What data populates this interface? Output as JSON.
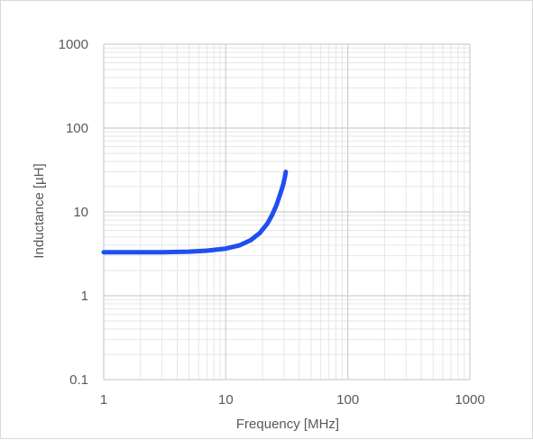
{
  "chart_data": {
    "type": "line",
    "xlabel": "Frequency [MHz]",
    "ylabel": "Inductance  [µH]",
    "xscale": "log",
    "yscale": "log",
    "xlim": [
      1,
      1000
    ],
    "ylim": [
      0.1,
      1000
    ],
    "grid": true,
    "x_tick_labels": [
      "1",
      "10",
      "100",
      "1000"
    ],
    "y_tick_labels": [
      "1000",
      "100",
      "10",
      "1",
      "0.1"
    ],
    "series_color": "#1f4ff0",
    "series": [
      {
        "x": [
          1,
          2,
          3,
          5,
          7,
          10,
          13,
          16,
          19,
          22,
          24,
          26,
          28,
          29.5,
          30.5,
          31
        ],
        "y": [
          3.3,
          3.3,
          3.3,
          3.35,
          3.45,
          3.65,
          4.0,
          4.6,
          5.6,
          7.3,
          9.2,
          12.0,
          16.5,
          21.0,
          26.0,
          30.0
        ]
      }
    ]
  }
}
